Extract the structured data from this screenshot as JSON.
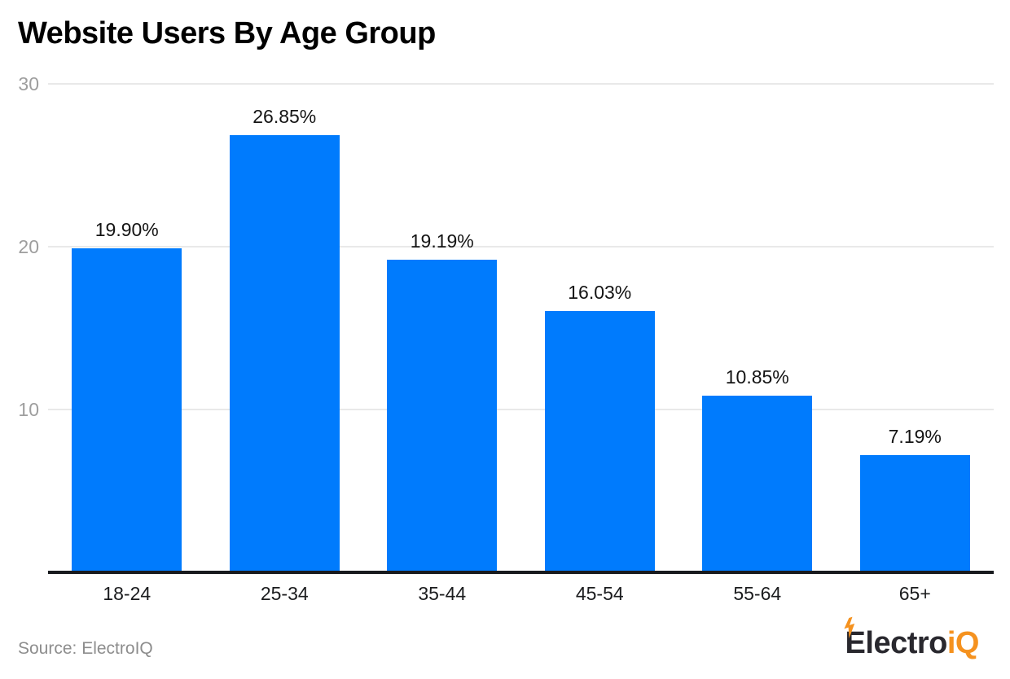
{
  "page": {
    "background": "#ffffff"
  },
  "chart_data": {
    "type": "bar",
    "title": "Website Users By Age Group",
    "categories": [
      "18-24",
      "25-34",
      "35-44",
      "45-54",
      "55-64",
      "65+"
    ],
    "values": [
      19.9,
      26.85,
      19.19,
      16.03,
      10.85,
      7.19
    ],
    "value_labels": [
      "19.90%",
      "26.85%",
      "19.19%",
      "16.03%",
      "10.85%",
      "7.19%"
    ],
    "xlabel": "",
    "ylabel": "",
    "ylim": [
      0,
      30
    ],
    "yticks": [
      10,
      20,
      30
    ],
    "grid": true,
    "legend": "none",
    "bar_color": "#007bfd",
    "gridline_color": "#e9e9e9",
    "axis_line_color": "#181a1e",
    "ytick_color": "#9e9e9e",
    "xtick_color": "#1b1c1e",
    "value_label_color": "#141414"
  },
  "footer": {
    "source": "Source: ElectroIQ",
    "logo": {
      "dark_text": "Electro",
      "accent_text": "iQ",
      "dark_color": "#29282e",
      "accent_color": "#f5921f"
    }
  }
}
